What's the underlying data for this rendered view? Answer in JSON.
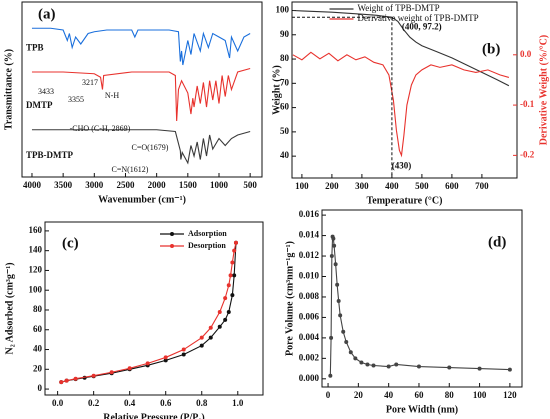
{
  "chart_data": [
    {
      "type": "line",
      "label": "(a)",
      "xlabel": "Wavenumber (cm⁻¹)",
      "ylabel": "Transmittance (%)",
      "xlim": [
        4160,
        310
      ],
      "ylim": [
        0,
        100
      ],
      "xticks": [
        4000,
        3500,
        3000,
        2500,
        2000,
        1500,
        1000,
        500
      ],
      "series": [
        {
          "name": "TPB",
          "color": "#1a6fdc",
          "x": [
            4000,
            3700,
            3500,
            3433,
            3400,
            3355,
            3300,
            3217,
            3100,
            3000,
            2800,
            2400,
            2350,
            2300,
            2000,
            1800,
            1650,
            1620,
            1600,
            1580,
            1500,
            1450,
            1400,
            1300,
            1250,
            1170,
            1100,
            1000,
            900,
            830,
            800,
            700,
            600,
            500
          ],
          "values": [
            85,
            85,
            84,
            78,
            82,
            74,
            80,
            76,
            82,
            83,
            84,
            84,
            80,
            84,
            84,
            84,
            83,
            66,
            72,
            64,
            78,
            70,
            82,
            72,
            82,
            74,
            82,
            80,
            78,
            68,
            80,
            72,
            80,
            82
          ]
        },
        {
          "name": "DMTP",
          "color": "#e8322d",
          "x": [
            4000,
            3500,
            3000,
            2900,
            2869,
            2850,
            2400,
            2000,
            1800,
            1700,
            1679,
            1650,
            1600,
            1500,
            1450,
            1420,
            1400,
            1350,
            1300,
            1250,
            1200,
            1150,
            1100,
            1050,
            1000,
            950,
            900,
            850,
            800,
            700,
            500
          ],
          "values": [
            60,
            60,
            59,
            57,
            50,
            58,
            60,
            60,
            60,
            58,
            32,
            50,
            55,
            48,
            36,
            45,
            40,
            52,
            42,
            54,
            40,
            55,
            44,
            55,
            42,
            58,
            46,
            58,
            50,
            60,
            62
          ]
        },
        {
          "name": "TPB-DMTP",
          "color": "#3a3a3a",
          "x": [
            4000,
            3500,
            3000,
            2500,
            2000,
            1700,
            1620,
            1612,
            1590,
            1500,
            1450,
            1400,
            1350,
            1300,
            1250,
            1200,
            1150,
            1100,
            1000,
            900,
            800,
            700,
            500
          ],
          "values": [
            27,
            27,
            27,
            27,
            27,
            26,
            15,
            10,
            14,
            8,
            18,
            12,
            20,
            10,
            22,
            12,
            24,
            16,
            22,
            18,
            22,
            24,
            26
          ]
        }
      ],
      "annotations": [
        {
          "text": "3433",
          "x": 3775,
          "y": 48.6
        },
        {
          "text": "3355",
          "x": 3294,
          "y": 44
        },
        {
          "text": "3217",
          "x": 3069,
          "y": 53.7
        },
        {
          "text": "N-H",
          "x": 2716,
          "y": 46.3
        },
        {
          "text": "-CHO (C-H, 2869)",
          "x": 2909,
          "y": 27.4
        },
        {
          "text": "C=O(1679)",
          "x": 2107,
          "y": 16.6
        },
        {
          "text": "C=N(1612)",
          "x": 2428,
          "y": 4
        }
      ]
    },
    {
      "type": "line",
      "label": "(b)",
      "xlabel": "Temperature (°C)",
      "ylabel": "Weight (%)",
      "y2label": "Derivative Weight (%/°C)",
      "xlim": [
        67,
        817
      ],
      "ylim": [
        31,
        103.5
      ],
      "y2lim": [
        -0.245,
        0.105
      ],
      "xticks": [
        100,
        200,
        300,
        400,
        500,
        600,
        700
      ],
      "yticks": [
        40,
        50,
        60,
        70,
        80,
        90,
        100
      ],
      "y2ticks": [
        {
          "value": 0,
          "label": "0.0"
        },
        -0.1,
        -0.2
      ],
      "y2color": "#e8322d",
      "legend": "upper center",
      "series": [
        {
          "name": "Weight of TPB-DMTP",
          "color": "#333333",
          "x": [
            70,
            100,
            200,
            300,
            350,
            400,
            420,
            440,
            460,
            480,
            500,
            550,
            600,
            650,
            700,
            750,
            790
          ],
          "values": [
            100,
            99.8,
            99.3,
            98.5,
            98,
            97.2,
            95.5,
            92,
            89,
            87,
            85.5,
            83,
            80.5,
            77.5,
            74.5,
            71.5,
            69
          ]
        },
        {
          "name": "Derivative weight of TPB-DMTP",
          "color": "#e8322d",
          "axis": "y2",
          "x": [
            70,
            100,
            130,
            160,
            190,
            220,
            250,
            280,
            310,
            340,
            370,
            390,
            405,
            415,
            425,
            432,
            440,
            450,
            465,
            480,
            500,
            530,
            560,
            600,
            640,
            680,
            720,
            760,
            790
          ],
          "values": [
            0,
            -0.01,
            0.005,
            -0.008,
            0.003,
            -0.012,
            0,
            -0.01,
            -0.004,
            -0.015,
            -0.02,
            -0.04,
            -0.09,
            -0.15,
            -0.19,
            -0.2,
            -0.16,
            -0.1,
            -0.06,
            -0.04,
            -0.03,
            -0.02,
            -0.025,
            -0.02,
            -0.03,
            -0.035,
            -0.03,
            -0.04,
            -0.045
          ]
        }
      ],
      "annotations": [
        {
          "text": "(400, 97.2)",
          "x": 400,
          "y": 97.2,
          "dashed": true
        },
        {
          "text": "(430)",
          "x": 432,
          "y": -0.2,
          "axis": "y2"
        }
      ]
    },
    {
      "type": "line",
      "label": "(c)",
      "xlabel": "Relative Pressure (P/P₀)",
      "ylabel": "N₂ Adsorbed (cm³g⁻¹)",
      "xlim": [
        -0.07,
        1.14
      ],
      "ylim": [
        -6,
        169
      ],
      "xticks": [
        {
          "value": 0,
          "label": "0.0"
        },
        0.2,
        0.4,
        0.6,
        0.8,
        {
          "value": 1,
          "label": "1.0"
        }
      ],
      "yticks": [
        0,
        20,
        40,
        60,
        80,
        100,
        120,
        140,
        160
      ],
      "legend": "upper right",
      "markers": true,
      "series": [
        {
          "name": "Adsorption",
          "color": "#111111",
          "x": [
            0.02,
            0.05,
            0.1,
            0.15,
            0.2,
            0.3,
            0.4,
            0.5,
            0.6,
            0.7,
            0.8,
            0.85,
            0.9,
            0.93,
            0.95,
            0.97,
            0.98,
            0.99
          ],
          "values": [
            7,
            8.5,
            10,
            11.5,
            13,
            16,
            20,
            24,
            29,
            35,
            44,
            52,
            63,
            70,
            78,
            95,
            115,
            148
          ]
        },
        {
          "name": "Desorption",
          "color": "#e8322d",
          "x": [
            0.99,
            0.98,
            0.97,
            0.96,
            0.95,
            0.93,
            0.9,
            0.85,
            0.8,
            0.7,
            0.6,
            0.5,
            0.4,
            0.3,
            0.2,
            0.1,
            0.05,
            0.02
          ],
          "values": [
            148,
            140,
            128,
            115,
            105,
            92,
            78,
            62,
            52,
            40,
            32,
            26,
            21,
            17,
            13.5,
            10.5,
            8.5,
            7
          ]
        }
      ]
    },
    {
      "type": "line",
      "label": "(d)",
      "xlabel": "Pore Width (nm)",
      "ylabel": "Pore Volume (cm³nm⁻¹g⁻¹)",
      "xlim": [
        -4,
        128
      ],
      "ylim": [
        -0.0008,
        0.0165
      ],
      "xticks": [
        0,
        20,
        40,
        60,
        80,
        100,
        120
      ],
      "yticks": [
        {
          "value": 0,
          "label": "0.000"
        },
        {
          "value": 0.002,
          "label": "0.002"
        },
        {
          "value": 0.004,
          "label": "0.004"
        },
        {
          "value": 0.006,
          "label": "0.006"
        },
        {
          "value": 0.008,
          "label": "0.008"
        },
        {
          "value": 0.01,
          "label": "0.010"
        },
        {
          "value": 0.012,
          "label": "0.012"
        },
        {
          "value": 0.014,
          "label": "0.014"
        },
        {
          "value": 0.016,
          "label": "0.016"
        }
      ],
      "markers": true,
      "series": [
        {
          "name": "Pore Volume",
          "color": "#444444",
          "x": [
            1.5,
            2,
            2.5,
            3,
            3.5,
            4,
            5,
            6,
            7,
            8,
            10,
            12,
            15,
            18,
            22,
            26,
            30,
            40,
            45,
            60,
            80,
            100,
            120
          ],
          "values": [
            0.0003,
            0.004,
            0.012,
            0.0139,
            0.0137,
            0.013,
            0.0112,
            0.0092,
            0.0076,
            0.0062,
            0.0046,
            0.0036,
            0.0026,
            0.002,
            0.0016,
            0.0014,
            0.0013,
            0.0012,
            0.0014,
            0.0012,
            0.0011,
            0.001,
            0.0009
          ]
        }
      ]
    }
  ]
}
